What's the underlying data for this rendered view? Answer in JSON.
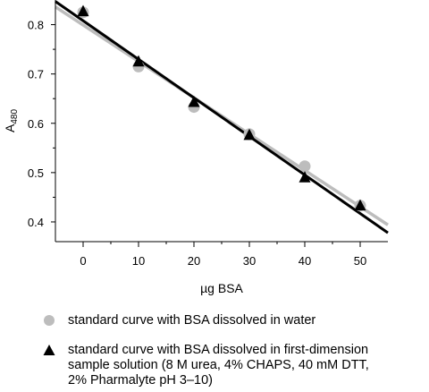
{
  "chart_data": {
    "type": "scatter",
    "xlabel": "µg BSA",
    "ylabel": "A480",
    "xlim": [
      -5,
      55
    ],
    "ylim": [
      0.36,
      0.85
    ],
    "x_ticks": [
      0,
      10,
      20,
      30,
      40,
      50
    ],
    "y_ticks": [
      0.4,
      0.5,
      0.6,
      0.7,
      0.8
    ],
    "grid": false,
    "legend_position": "bottom",
    "series": [
      {
        "name": "standard curve with BSA dissolved in water",
        "marker": "circle",
        "color": "#bdbdbd",
        "x": [
          0,
          10,
          20,
          30,
          40,
          50
        ],
        "y": [
          0.825,
          0.715,
          0.633,
          0.578,
          0.513,
          0.433
        ],
        "fit": {
          "x": [
            -5,
            55
          ],
          "y": [
            0.836,
            0.394
          ],
          "color": "#bdbdbd"
        }
      },
      {
        "name": "standard curve with BSA dissolved in first-dimension sample solution (8 M urea, 4% CHAPS, 40 mM DTT, 2% Pharmalyte pH 3–10)",
        "marker": "triangle",
        "color": "#000000",
        "x": [
          0,
          10,
          20,
          30,
          40,
          50
        ],
        "y": [
          0.827,
          0.725,
          0.643,
          0.576,
          0.49,
          0.433
        ],
        "fit": {
          "x": [
            -5,
            55
          ],
          "y": [
            0.847,
            0.378
          ],
          "color": "#000000"
        }
      }
    ]
  },
  "legend": {
    "item1": "standard curve with BSA dissolved in water",
    "item2": "standard curve with BSA dissolved in first-dimension\nsample solution (8 M urea, 4% CHAPS, 40 mM DTT,\n2% Pharmalyte pH 3–10)"
  }
}
